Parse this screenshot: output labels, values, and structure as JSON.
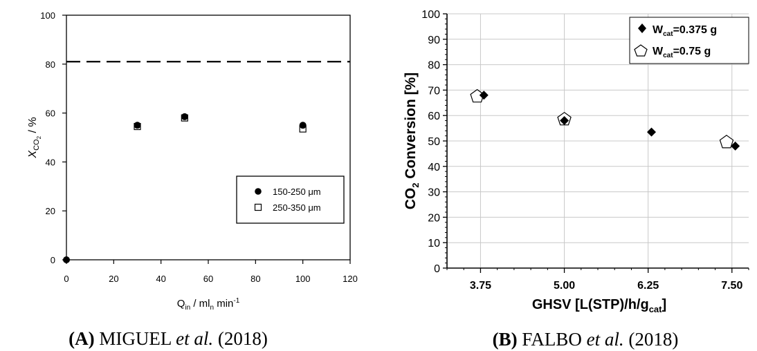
{
  "colors": {
    "ink": "#000000",
    "background": "#ffffff",
    "gridline": "#c8c8c8"
  },
  "chart_data": [
    {
      "type": "scatter",
      "panel": "A",
      "caption": {
        "label": "(A)",
        "authors": "MIGUEL",
        "etal": "et al.",
        "year": "(2018)"
      },
      "title": "",
      "ylabel": {
        "main": "X",
        "sub": "CO",
        "subsub": "2",
        "rest": " / %"
      },
      "xlabel": {
        "main": "Q",
        "sub": "in",
        "mid": " / ml",
        "sub2": "n",
        "rest": " min",
        "sup": "-1"
      },
      "xlim": [
        0,
        120
      ],
      "ylim": [
        0,
        100
      ],
      "xticks": [
        "0",
        "20",
        "40",
        "60",
        "80",
        "100",
        "120"
      ],
      "yticks": [
        "0",
        "20",
        "40",
        "60",
        "80",
        "100"
      ],
      "xtick_values": [
        0,
        20,
        40,
        60,
        80,
        100,
        120
      ],
      "ytick_values": [
        0,
        20,
        40,
        60,
        80,
        100
      ],
      "grid": false,
      "reference_line": {
        "y": 81,
        "style": "dashed"
      },
      "legend_position": "lower-right",
      "series": [
        {
          "name": "150-250 μm",
          "marker": "filled-circle",
          "x": [
            0,
            30,
            50,
            100
          ],
          "y": [
            0,
            55,
            58.5,
            55
          ]
        },
        {
          "name": "250-350 μm",
          "marker": "open-square",
          "x": [
            30,
            50,
            100
          ],
          "y": [
            54.5,
            58,
            53.5
          ]
        }
      ]
    },
    {
      "type": "scatter",
      "panel": "B",
      "caption": {
        "label": "(B)",
        "authors": "FALBO",
        "etal": "et al.",
        "year": "(2018)"
      },
      "title": "",
      "ylabel": {
        "main": "CO",
        "sub": "2",
        "rest": " Conversion [%]"
      },
      "xlabel": {
        "main": "GHSV [L(STP)/h/g",
        "sub": "cat",
        "rest": "]"
      },
      "xlim": [
        3.25,
        7.75
      ],
      "ylim": [
        0,
        100
      ],
      "xticks": [
        "3.75",
        "5.00",
        "6.25",
        "7.50"
      ],
      "yticks": [
        "0",
        "10",
        "20",
        "30",
        "40",
        "50",
        "60",
        "70",
        "80",
        "90",
        "100"
      ],
      "xtick_values": [
        3.75,
        5.0,
        6.25,
        7.5
      ],
      "ytick_values": [
        0,
        10,
        20,
        30,
        40,
        50,
        60,
        70,
        80,
        90,
        100
      ],
      "grid": true,
      "legend_position": "top-right",
      "series": [
        {
          "name_main": "W",
          "name_sub": "cat",
          "name_rest": "=0.375 g",
          "marker": "filled-diamond",
          "x": [
            3.8,
            5.0,
            6.3,
            7.55
          ],
          "y": [
            68,
            58,
            53.5,
            48
          ]
        },
        {
          "name_main": "W",
          "name_sub": "cat",
          "name_rest": "=0.75 g",
          "marker": "open-pentagon",
          "x": [
            3.7,
            5.0,
            7.42
          ],
          "y": [
            67.5,
            58.5,
            49.5
          ]
        }
      ]
    }
  ]
}
